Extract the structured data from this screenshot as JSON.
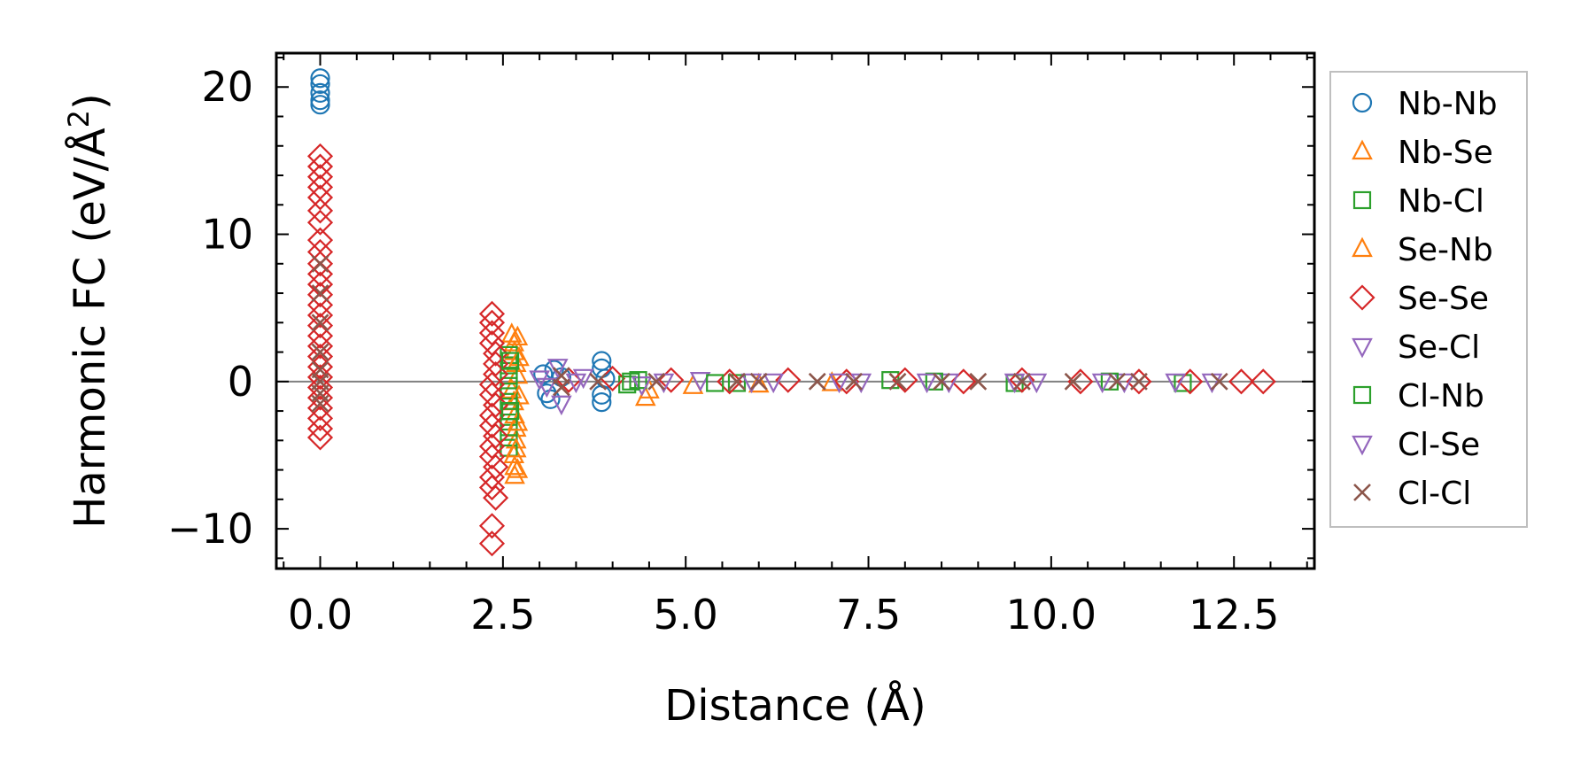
{
  "chart_data": {
    "type": "scatter",
    "title": "",
    "xlabel": "Distance (Å)",
    "ylabel": "Harmonic FC (eV/Å",
    "ylabel_sup": "2",
    "ylabel_tail": ")",
    "xlim": [
      -0.6,
      13.6
    ],
    "ylim": [
      -12.7,
      22.3
    ],
    "xticks": [
      0.0,
      2.5,
      5.0,
      7.5,
      10.0,
      12.5
    ],
    "xtick_labels": [
      "0.0",
      "2.5",
      "5.0",
      "7.5",
      "10.0",
      "12.5"
    ],
    "yticks": [
      -10,
      0,
      10,
      20
    ],
    "ytick_labels": [
      "−10",
      "0",
      "10",
      "20"
    ],
    "zero_line": 0,
    "grid": false,
    "legend_position": "outside-right",
    "series": [
      {
        "name": "Nb-Nb",
        "color": "#1f77b4",
        "marker": "circle",
        "points": [
          [
            0,
            20.6
          ],
          [
            0,
            20.2
          ],
          [
            0,
            19.6
          ],
          [
            0,
            19.1
          ],
          [
            0,
            18.8
          ],
          [
            3.05,
            0.5
          ],
          [
            3.1,
            -0.8
          ],
          [
            3.15,
            -1.2
          ],
          [
            3.2,
            0.8
          ],
          [
            3.3,
            0.3
          ],
          [
            3.85,
            1.4
          ],
          [
            3.85,
            0.9
          ],
          [
            3.85,
            -0.9
          ],
          [
            3.85,
            -1.4
          ],
          [
            3.9,
            0.2
          ]
        ]
      },
      {
        "name": "Nb-Se",
        "color": "#ff7f0e",
        "marker": "triangle-up",
        "points": [
          [
            2.62,
            3.2
          ],
          [
            2.65,
            2.6
          ],
          [
            2.66,
            2.0
          ],
          [
            2.68,
            1.2
          ],
          [
            2.7,
            0.4
          ],
          [
            2.62,
            -0.6
          ],
          [
            2.65,
            -1.4
          ],
          [
            2.66,
            -2.3
          ],
          [
            2.68,
            -3.2
          ],
          [
            2.68,
            -4.0
          ],
          [
            2.65,
            -5.0
          ],
          [
            2.66,
            -5.8
          ],
          [
            2.66,
            -6.4
          ],
          [
            4.45,
            -1.1
          ],
          [
            4.5,
            -0.6
          ],
          [
            5.1,
            -0.3
          ],
          [
            6.0,
            -0.2
          ],
          [
            7.0,
            -0.1
          ]
        ]
      },
      {
        "name": "Nb-Cl",
        "color": "#2ca02c",
        "marker": "square",
        "points": [
          [
            2.58,
            1.8
          ],
          [
            2.58,
            1.1
          ],
          [
            2.58,
            0.4
          ],
          [
            2.58,
            -0.3
          ],
          [
            2.58,
            -1.0
          ],
          [
            2.58,
            -1.7
          ],
          [
            2.58,
            -2.4
          ],
          [
            2.58,
            -3.1
          ],
          [
            2.58,
            -3.8
          ],
          [
            2.58,
            -4.5
          ],
          [
            4.2,
            -0.2
          ],
          [
            4.35,
            0.1
          ],
          [
            5.7,
            -0.1
          ],
          [
            7.8,
            0.1
          ],
          [
            9.5,
            -0.1
          ],
          [
            11.8,
            -0.1
          ]
        ]
      },
      {
        "name": "Se-Nb",
        "color": "#ff7f0e",
        "marker": "triangle-up",
        "points": [
          [
            2.7,
            3.0
          ],
          [
            2.72,
            1.6
          ],
          [
            2.72,
            -1.0
          ],
          [
            2.7,
            -2.8
          ],
          [
            2.68,
            -4.6
          ],
          [
            2.7,
            -6.0
          ]
        ]
      },
      {
        "name": "Se-Se",
        "color": "#d62728",
        "marker": "diamond",
        "points": [
          [
            0,
            15.3
          ],
          [
            0,
            14.6
          ],
          [
            0,
            13.9
          ],
          [
            0,
            13.2
          ],
          [
            0,
            12.5
          ],
          [
            0,
            11.6
          ],
          [
            0,
            10.8
          ],
          [
            0,
            9.6
          ],
          [
            0,
            8.8
          ],
          [
            0,
            8.0
          ],
          [
            0,
            7.3
          ],
          [
            0,
            6.6
          ],
          [
            0,
            5.9
          ],
          [
            0,
            5.2
          ],
          [
            0,
            4.5
          ],
          [
            0,
            3.8
          ],
          [
            0,
            3.1
          ],
          [
            0,
            2.4
          ],
          [
            0,
            1.7
          ],
          [
            0,
            1.0
          ],
          [
            0,
            0.3
          ],
          [
            0,
            -0.4
          ],
          [
            0,
            -1.1
          ],
          [
            0,
            -1.8
          ],
          [
            0,
            -2.5
          ],
          [
            0,
            -3.2
          ],
          [
            0,
            -3.8
          ],
          [
            2.35,
            4.6
          ],
          [
            2.35,
            4.0
          ],
          [
            2.35,
            3.3
          ],
          [
            2.35,
            2.6
          ],
          [
            2.4,
            1.9
          ],
          [
            2.4,
            1.2
          ],
          [
            2.4,
            0.5
          ],
          [
            2.35,
            -0.2
          ],
          [
            2.35,
            -0.9
          ],
          [
            2.4,
            -1.6
          ],
          [
            2.35,
            -2.3
          ],
          [
            2.35,
            -3.0
          ],
          [
            2.4,
            -3.7
          ],
          [
            2.35,
            -4.4
          ],
          [
            2.35,
            -5.1
          ],
          [
            2.4,
            -5.8
          ],
          [
            2.35,
            -6.5
          ],
          [
            2.35,
            -7.2
          ],
          [
            2.4,
            -7.9
          ],
          [
            2.35,
            -9.8
          ],
          [
            2.35,
            -11.0
          ],
          [
            3.4,
            0.1
          ],
          [
            4.0,
            0.2
          ],
          [
            4.8,
            0.1
          ],
          [
            5.6,
            0.0
          ],
          [
            6.4,
            0.1
          ],
          [
            7.2,
            0.0
          ],
          [
            8.0,
            0.1
          ],
          [
            8.8,
            0.0
          ],
          [
            9.6,
            0.1
          ],
          [
            10.4,
            0.0
          ],
          [
            11.2,
            0.0
          ],
          [
            11.9,
            0.0
          ],
          [
            12.6,
            0.0
          ],
          [
            12.9,
            0.0
          ]
        ]
      },
      {
        "name": "Se-Cl",
        "color": "#9467bd",
        "marker": "triangle-down",
        "points": [
          [
            3.0,
            0.2
          ],
          [
            3.25,
            1.0
          ],
          [
            3.3,
            -1.5
          ],
          [
            3.6,
            0.3
          ],
          [
            4.4,
            -0.2
          ],
          [
            5.2,
            0.1
          ],
          [
            6.2,
            0.0
          ],
          [
            7.4,
            0.0
          ],
          [
            8.6,
            0.0
          ],
          [
            9.8,
            0.0
          ],
          [
            11.0,
            0.0
          ],
          [
            12.2,
            0.0
          ]
        ]
      },
      {
        "name": "Cl-Nb",
        "color": "#2ca02c",
        "marker": "square",
        "points": [
          [
            2.6,
            1.4
          ],
          [
            2.6,
            -2.0
          ],
          [
            4.25,
            0.0
          ],
          [
            5.4,
            -0.1
          ],
          [
            8.4,
            0.0
          ],
          [
            10.8,
            0.0
          ]
        ]
      },
      {
        "name": "Cl-Se",
        "color": "#9467bd",
        "marker": "triangle-down",
        "points": [
          [
            3.1,
            -0.3
          ],
          [
            3.5,
            0.0
          ],
          [
            4.7,
            0.0
          ],
          [
            5.9,
            0.0
          ],
          [
            7.1,
            0.0
          ],
          [
            8.3,
            0.0
          ],
          [
            9.5,
            0.0
          ],
          [
            10.7,
            0.0
          ],
          [
            11.7,
            0.0
          ]
        ]
      },
      {
        "name": "Cl-Cl",
        "color": "#8c564b",
        "marker": "x",
        "points": [
          [
            0,
            8.0
          ],
          [
            0,
            6.0
          ],
          [
            0,
            4.0
          ],
          [
            0,
            2.0
          ],
          [
            0,
            0.8
          ],
          [
            0,
            0.0
          ],
          [
            0,
            -0.8
          ],
          [
            0,
            -1.5
          ],
          [
            3.3,
            0.4
          ],
          [
            3.3,
            -0.4
          ],
          [
            3.8,
            0.0
          ],
          [
            4.6,
            0.0
          ],
          [
            5.7,
            0.0
          ],
          [
            6.0,
            0.0
          ],
          [
            6.8,
            0.0
          ],
          [
            7.3,
            0.0
          ],
          [
            7.9,
            0.0
          ],
          [
            8.5,
            0.0
          ],
          [
            9.0,
            0.0
          ],
          [
            9.6,
            0.0
          ],
          [
            10.3,
            0.0
          ],
          [
            10.9,
            0.0
          ],
          [
            11.2,
            0.0
          ],
          [
            12.3,
            0.0
          ]
        ]
      }
    ]
  }
}
